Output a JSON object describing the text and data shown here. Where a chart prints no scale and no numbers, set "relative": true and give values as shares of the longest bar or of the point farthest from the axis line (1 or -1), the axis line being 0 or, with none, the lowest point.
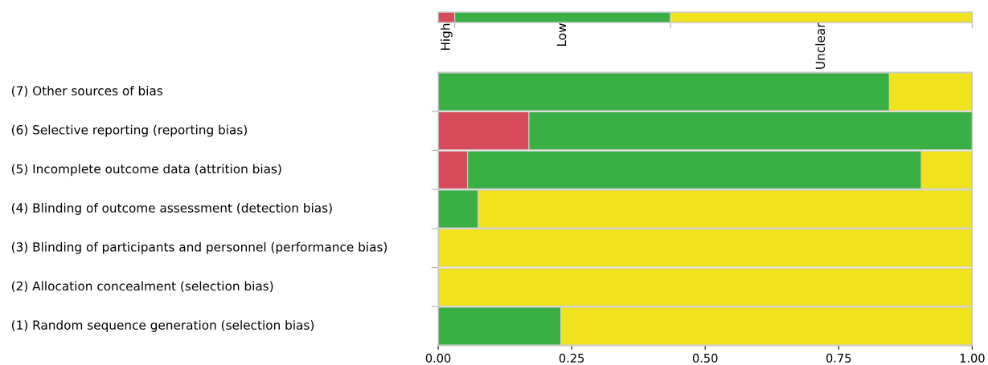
{
  "chart_data": [
    {
      "type": "bar",
      "orientation": "horizontal",
      "stacked": true,
      "relative": true,
      "categories": [
        null
      ],
      "series": [
        {
          "name": "High",
          "color": "#d64a5a",
          "values": [
            0.031
          ]
        },
        {
          "name": "Low",
          "color": "#3aaf45",
          "values": [
            0.404
          ]
        },
        {
          "name": "Unclear",
          "color": "#f0e31e",
          "values": [
            0.565
          ]
        }
      ]
    },
    {
      "type": "bar",
      "orientation": "horizontal",
      "stacked": true,
      "categories": [
        "(7) Other sources of bias",
        "(6) Selective reporting (reporting bias)",
        "(5) Incomplete outcome data (attrition bias)",
        "(4) Blinding of outcome assessment (detection bias)",
        "(3) Blinding of participants and personnel (performance bias)",
        "(2) Allocation concealment (selection bias)",
        "(1) Random sequence generation (selection bias)"
      ],
      "series": [
        {
          "color": "#d64a5a",
          "values": [
            0,
            0.17,
            0.055,
            0,
            0,
            0,
            0
          ]
        },
        {
          "color": "#3aaf45",
          "values": [
            0.845,
            0.83,
            0.85,
            0.075,
            0,
            0,
            0.23
          ]
        },
        {
          "color": "#f0e31e",
          "values": [
            0.155,
            0,
            0.095,
            0.925,
            1,
            1,
            0.77
          ]
        }
      ],
      "xlim": [
        0,
        1
      ],
      "xticks": [
        {
          "value": 0,
          "label": "0.00"
        },
        {
          "value": 0.25,
          "label": "0.25"
        },
        {
          "value": 0.5,
          "label": "0.50"
        },
        {
          "value": 0.75,
          "label": "0.75"
        },
        {
          "value": 1,
          "label": "1.00"
        }
      ],
      "grid": false
    }
  ]
}
